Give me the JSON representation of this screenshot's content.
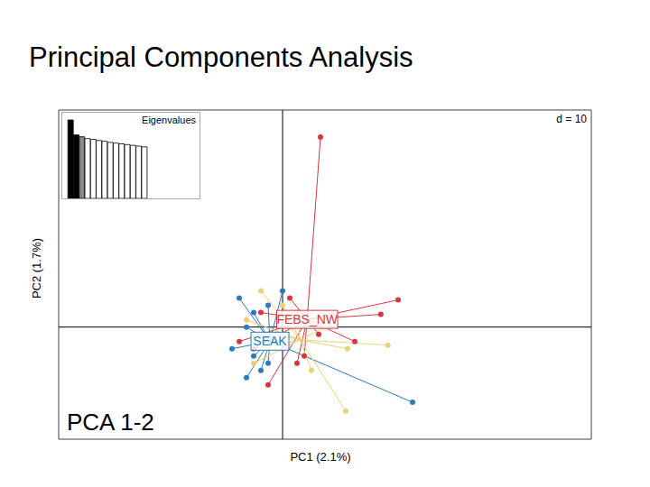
{
  "chart_data": [
    {
      "type": "scatter",
      "title": "Principal Components Analysis",
      "x_label": "PC1 (2.1%)",
      "y_label": "PC2 (1.7%)",
      "annotations": [
        "d = 10",
        "PCA 1-2"
      ],
      "xlim": [
        -31,
        42.75
      ],
      "ylim": [
        -15.5,
        30
      ],
      "xticks": [
        -20,
        -10,
        0,
        10,
        20,
        30,
        40
      ],
      "yticks": [
        -10,
        0,
        10,
        20,
        30
      ],
      "grid": true,
      "tick_labels": false,
      "series": [
        {
          "name": "FEBS_NW",
          "color": "#d7373f",
          "marker": "circle",
          "x": [
            5.25,
            16,
            13.6,
            10,
            -4,
            -6,
            2,
            -3,
            5,
            -2,
            1,
            3
          ],
          "values": [
            26.25,
            3.75,
            1.75,
            -2,
            -3,
            -2,
            -5,
            2,
            -1,
            -8,
            4,
            -4
          ]
        },
        {
          "name": "SEAK",
          "color": "#2b7bba",
          "marker": "circle",
          "x": [
            18,
            -6,
            -5,
            -4,
            -3,
            -7,
            -2,
            -5,
            -1,
            -4,
            0,
            -2
          ],
          "values": [
            -10.4,
            4,
            0,
            -4,
            -6,
            -3,
            3,
            -7,
            -2,
            2,
            5,
            -5
          ]
        },
        {
          "color": "#e6d27a",
          "marker": "circle",
          "x": [
            8.75,
            14.6,
            9,
            -3,
            -5,
            -2,
            0,
            4,
            -1,
            6,
            -4,
            2
          ],
          "values": [
            -11.6,
            -2.5,
            -3,
            5,
            1,
            -3,
            3,
            -6,
            -1,
            0,
            -5,
            2
          ]
        }
      ]
    },
    {
      "type": "bar",
      "title": "Eigenvalues",
      "tick_labels": false,
      "values": [
        2.1,
        1.7,
        1.65,
        1.6,
        1.58,
        1.55,
        1.53,
        1.5,
        1.48,
        1.46,
        1.44,
        1.42,
        1.4,
        1.38
      ],
      "colors": [
        "#000000",
        "#000000",
        "#888888",
        "#ffffff",
        "#ffffff",
        "#ffffff",
        "#ffffff",
        "#ffffff",
        "#ffffff",
        "#ffffff",
        "#ffffff",
        "#ffffff",
        "#ffffff",
        "#ffffff"
      ]
    }
  ]
}
